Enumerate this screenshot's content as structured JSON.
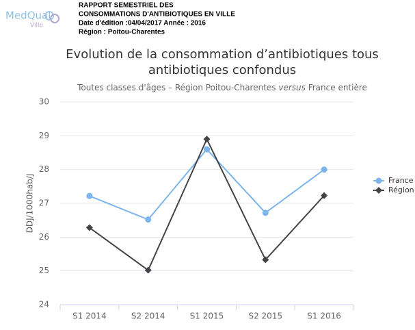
{
  "header": {
    "logo": [
      "MedQual",
      "Ville"
    ],
    "lines": [
      "RAPPORT SEMESTRIEL DES",
      "CONSOMMATIONS D'ANTIBIOTIQUES EN VILLE",
      "Date d'édition :04/04/2017 Année : 2016",
      "Région : Poitou-Charentes"
    ]
  },
  "chart_data": {
    "type": "line",
    "title": [
      "Evolution de la consommation d’antibiotiques tous",
      "antibiotiques confondus"
    ],
    "subtitle": [
      "Toutes classes d'âges – Région Poitou-Charentes ",
      "versus",
      " France entière"
    ],
    "y_label": "DDJ/1000hab/J",
    "categories": [
      "S1 2014",
      "S2 2014",
      "S1 2015",
      "S2 2015",
      "S1 2016"
    ],
    "series": [
      {
        "name": "France",
        "color": "#7cb5ec",
        "marker": "circle",
        "values": [
          27.22,
          26.52,
          28.6,
          26.72,
          28.0
        ]
      },
      {
        "name": "Région",
        "color": "#434348",
        "marker": "diamond",
        "values": [
          26.28,
          25.02,
          28.9,
          25.33,
          27.23
        ]
      }
    ],
    "ylim": [
      24,
      30
    ],
    "yticks": [
      24,
      25,
      26,
      27,
      28,
      29,
      30
    ],
    "grid": true,
    "legend": "right"
  }
}
